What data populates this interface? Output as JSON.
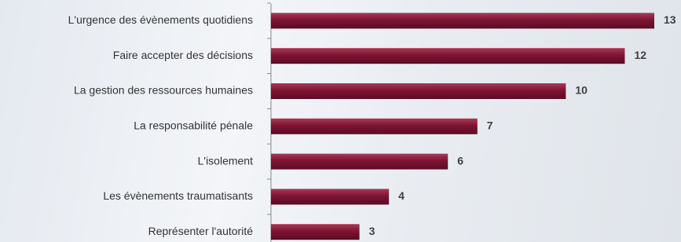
{
  "chart_data": {
    "type": "bar",
    "orientation": "horizontal",
    "categories": [
      "L'urgence des évènements quotidiens",
      "Faire accepter des décisions",
      "La gestion des ressources humaines",
      "La responsabilité pénale",
      "L'isolement",
      "Les évènements traumatisants",
      "Représenter l'autorité"
    ],
    "values": [
      13,
      12,
      10,
      7,
      6,
      4,
      3
    ],
    "color": "#7d1434"
  }
}
